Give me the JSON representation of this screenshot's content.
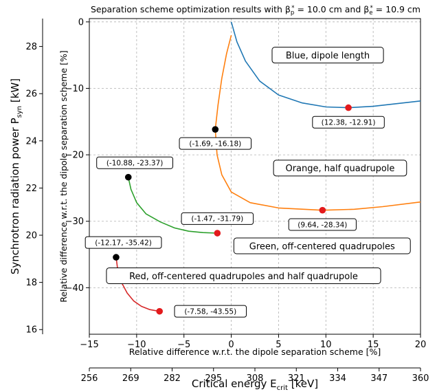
{
  "chart_data": {
    "type": "line",
    "title": "Separation scheme optimization results with β",
    "title_parts": {
      "prefix": "Separation scheme optimization results with β",
      "sub_p": "p",
      "eq_p": " = 10.0 cm and β",
      "sub_e": "e",
      "eq_e": " = 10.9 cm"
    },
    "xlabel": "Relative difference w.r.t. the dipole separation scheme [%]",
    "ylabel": "Relative difference w.r.t. the dipole separation scheme [%]",
    "xlim": [
      -15,
      20
    ],
    "ylim": [
      -47,
      0.5
    ],
    "x_ticks": [
      "−15",
      "−10",
      "−5",
      "0",
      "5",
      "10",
      "15",
      "20"
    ],
    "x_tick_values": [
      -15,
      -10,
      -5,
      0,
      5,
      10,
      15,
      20
    ],
    "y_ticks": [
      "0",
      "−10",
      "−20",
      "−30",
      "−40"
    ],
    "y_tick_values": [
      0,
      -10,
      -20,
      -30,
      -40
    ],
    "grid": true,
    "secondary_x": {
      "label_prefix": "Critical energy E",
      "label_sub": "crit",
      "label_suffix": " [keV]",
      "ticks": [
        "256",
        "269",
        "282",
        "295",
        "308",
        "321",
        "334",
        "347",
        "360"
      ],
      "tick_values": [
        -15,
        -10,
        -5,
        0,
        5,
        10,
        15,
        20,
        25
      ]
    },
    "secondary_y": {
      "label_prefix": "Synchrotron radiation power P",
      "label_sub": "syn",
      "label_suffix": " [kW]",
      "ticks": [
        "16",
        "18",
        "20",
        "22",
        "24",
        "26",
        "28"
      ],
      "tick_values": [
        -46.3,
        -39.2,
        -32.1,
        -25.0,
        -17.9,
        -10.8,
        -3.7
      ]
    },
    "series": [
      {
        "name": "Blue, dipole length",
        "color": "#1f77b4",
        "x": [
          0.0,
          0.6,
          1.5,
          3.0,
          5.0,
          7.5,
          10.0,
          12.38,
          15.0,
          17.5,
          20.0
        ],
        "y": [
          0.0,
          -3.0,
          -5.9,
          -8.9,
          -11.0,
          -12.2,
          -12.8,
          -12.91,
          -12.7,
          -12.3,
          -11.9
        ],
        "label_anchor": {
          "x": 10.2,
          "y": -5.0
        },
        "start_point": {
          "x": 12.38,
          "y": -12.91,
          "label": "(12.38, -12.91)"
        }
      },
      {
        "name": "Orange, half quadrupole",
        "color": "#ff7f0e",
        "x": [
          0.0,
          -0.5,
          -1.0,
          -1.4,
          -1.69,
          -1.5,
          -1.0,
          0.0,
          2.0,
          5.0,
          9.64,
          13.0,
          16.0,
          20.0
        ],
        "y": [
          -2.0,
          -4.8,
          -8.5,
          -12.5,
          -16.18,
          -20.0,
          -23.0,
          -25.6,
          -27.2,
          -28.0,
          -28.34,
          -28.2,
          -27.8,
          -27.1
        ],
        "label_anchor": {
          "x": 11.5,
          "y": -22.0
        },
        "start_point": {
          "x": -1.69,
          "y": -16.18,
          "label": "(-1.69, -16.18)"
        },
        "end_point": {
          "x": 9.64,
          "y": -28.34,
          "label": "(9.64, -28.34)"
        }
      },
      {
        "name": "Green, off-centered quadrupoles",
        "color": "#2ca02c",
        "x": [
          -10.88,
          -10.6,
          -10.0,
          -9.0,
          -7.5,
          -6.0,
          -4.5,
          -3.0,
          -1.47
        ],
        "y": [
          -23.37,
          -25.2,
          -27.2,
          -28.9,
          -30.1,
          -31.0,
          -31.5,
          -31.7,
          -31.79
        ],
        "label_anchor": {
          "x": 9.6,
          "y": -33.7
        },
        "start_point": {
          "x": -10.88,
          "y": -23.37,
          "label": "(-10.88, -23.37)"
        },
        "end_point": {
          "x": -1.47,
          "y": -31.79,
          "label": "(-1.47, -31.79)"
        }
      },
      {
        "name": "Red, off-centered quadrupoles and half quadrupole",
        "color": "#d62728",
        "x": [
          -12.17,
          -12.0,
          -11.6,
          -11.0,
          -10.3,
          -9.5,
          -8.6,
          -7.58
        ],
        "y": [
          -35.42,
          -37.3,
          -39.2,
          -40.8,
          -42.0,
          -42.8,
          -43.3,
          -43.55
        ],
        "label_anchor": {
          "x": 1.3,
          "y": -38.2
        },
        "start_point": {
          "x": -12.17,
          "y": -35.42,
          "label": "(-12.17, -35.42)"
        },
        "end_point": {
          "x": -7.58,
          "y": -43.55,
          "label": "(-7.58, -43.55)"
        }
      }
    ],
    "annotations": [
      {
        "text": "(12.38, -12.91)",
        "x": 12.38,
        "y": -12.91,
        "ax": 12.38,
        "ay": -15.1,
        "marker": "red"
      },
      {
        "text": "(-1.69, -16.18)",
        "x": -1.69,
        "y": -16.18,
        "ax": -1.69,
        "ay": -18.3,
        "marker": "black"
      },
      {
        "text": "(9.64, -28.34)",
        "x": 9.64,
        "y": -28.34,
        "ax": 9.64,
        "ay": -30.5,
        "marker": "red"
      },
      {
        "text": "(-10.88, -23.37)",
        "x": -10.88,
        "y": -23.37,
        "ax": -10.2,
        "ay": -21.2,
        "marker": "black"
      },
      {
        "text": "(-1.47, -31.79)",
        "x": -1.47,
        "y": -31.79,
        "ax": -1.47,
        "ay": -29.6,
        "marker": "red"
      },
      {
        "text": "(-12.17, -35.42)",
        "x": -12.17,
        "y": -35.42,
        "ax": -11.4,
        "ay": -33.2,
        "marker": "black"
      },
      {
        "text": "(-7.58, -43.55)",
        "x": -7.58,
        "y": -43.55,
        "ax": -2.2,
        "ay": -43.55,
        "marker": "red"
      }
    ],
    "marker_colors": {
      "black": "#000000",
      "red": "#e31a1c"
    }
  }
}
